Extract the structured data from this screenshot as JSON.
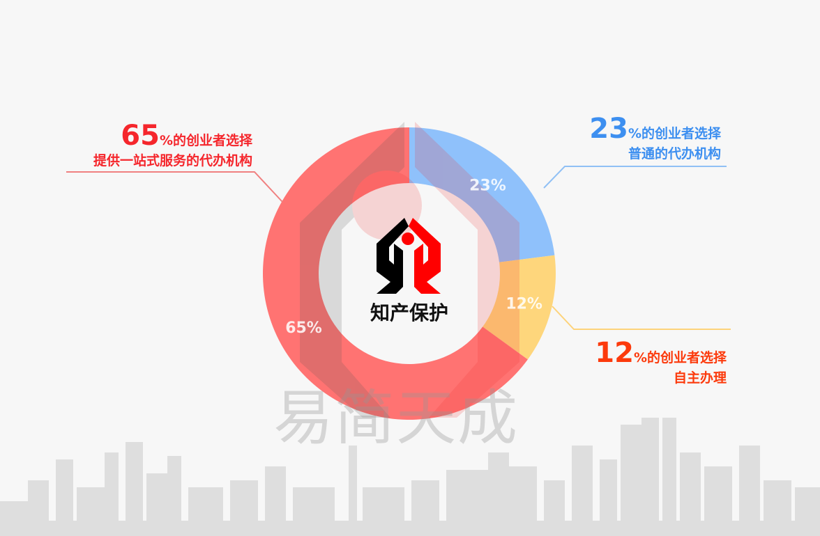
{
  "chart_data": {
    "type": "pie",
    "donut": true,
    "slices": [
      {
        "label": "23%",
        "value": 23,
        "color": "#8fc1fb"
      },
      {
        "label": "12%",
        "value": 12,
        "color": "#fed67c"
      },
      {
        "label": "65%",
        "value": 65,
        "color": "#ff7372"
      }
    ],
    "center_label": "知产保护",
    "annotations": [
      {
        "percent": "65",
        "line1": "%的创业者选择",
        "line2": "提供一站式服务的代办机构",
        "color": "#f5262c",
        "line_color": "#f08080"
      },
      {
        "percent": "23",
        "line1": "%的创业者选择",
        "line2": "普通的代办机构",
        "color": "#3d8ff0",
        "line_color": "#90c0f5"
      },
      {
        "percent": "12",
        "line1": "%的创业者选择",
        "line2": "自主办理",
        "color": "#fc3a0c",
        "line_color": "#fdd37a"
      }
    ]
  },
  "watermark": "易简天成",
  "logo_icon": "house-hands-logo-icon",
  "background_icon": "city-skyline"
}
